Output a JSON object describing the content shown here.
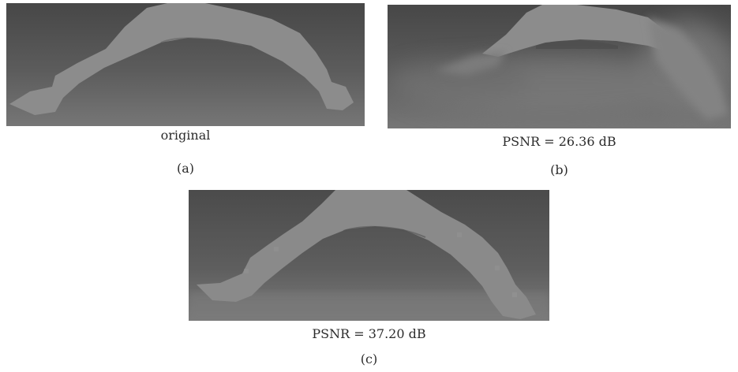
{
  "figures": [
    {
      "id": "a",
      "caption": "original",
      "label": "(a)"
    },
    {
      "id": "b",
      "caption": "PSNR = 26.36 dB",
      "label": "(b)"
    },
    {
      "id": "c",
      "caption": "PSNR = 37.20 dB",
      "label": "(c)"
    }
  ],
  "colors": {
    "background_top": "#4a4a4a",
    "background_bottom": "#747474",
    "object": "#8b8b8b",
    "object_edge": "#9a9a9a"
  }
}
